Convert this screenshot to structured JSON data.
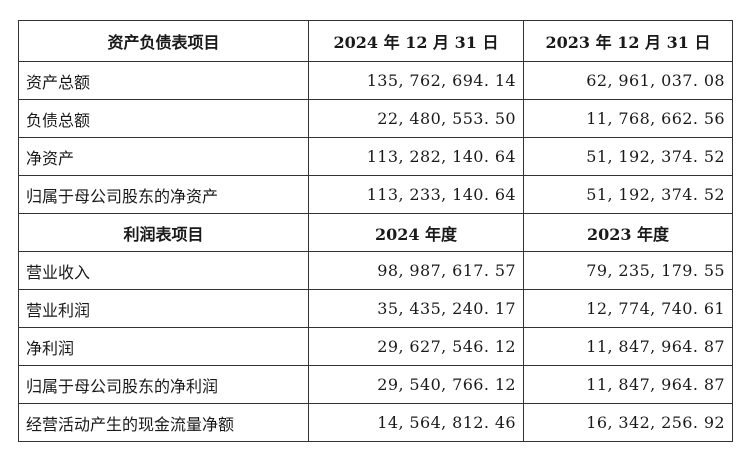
{
  "balance_sheet": {
    "header": {
      "item": "资产负债表项目",
      "col_2024": "2024 年 12 月 31 日",
      "col_2023": "2023 年 12 月 31 日"
    },
    "rows": [
      {
        "label": "资产总额",
        "v2024": "135, 762, 694. 14",
        "v2023": "62, 961, 037. 08"
      },
      {
        "label": "负债总额",
        "v2024": "22, 480, 553. 50",
        "v2023": "11, 768, 662. 56"
      },
      {
        "label": "净资产",
        "v2024": "113, 282, 140. 64",
        "v2023": "51, 192, 374. 52"
      },
      {
        "label": "归属于母公司股东的净资产",
        "v2024": "113, 233, 140. 64",
        "v2023": "51, 192, 374. 52"
      }
    ]
  },
  "income_statement": {
    "header": {
      "item": "利润表项目",
      "col_2024": "2024 年度",
      "col_2023": "2023 年度"
    },
    "rows": [
      {
        "label": "营业收入",
        "v2024": "98, 987, 617. 57",
        "v2023": "79, 235, 179. 55"
      },
      {
        "label": "营业利润",
        "v2024": "35, 435, 240. 17",
        "v2023": "12, 774, 740. 61"
      },
      {
        "label": "净利润",
        "v2024": "29, 627, 546. 12",
        "v2023": "11, 847, 964. 87"
      },
      {
        "label": "归属于母公司股东的净利润",
        "v2024": "29, 540, 766. 12",
        "v2023": "11, 847, 964. 87"
      },
      {
        "label": "经营活动产生的现金流量净额",
        "v2024": "14, 564, 812. 46",
        "v2023": "16, 342, 256. 92"
      }
    ]
  }
}
